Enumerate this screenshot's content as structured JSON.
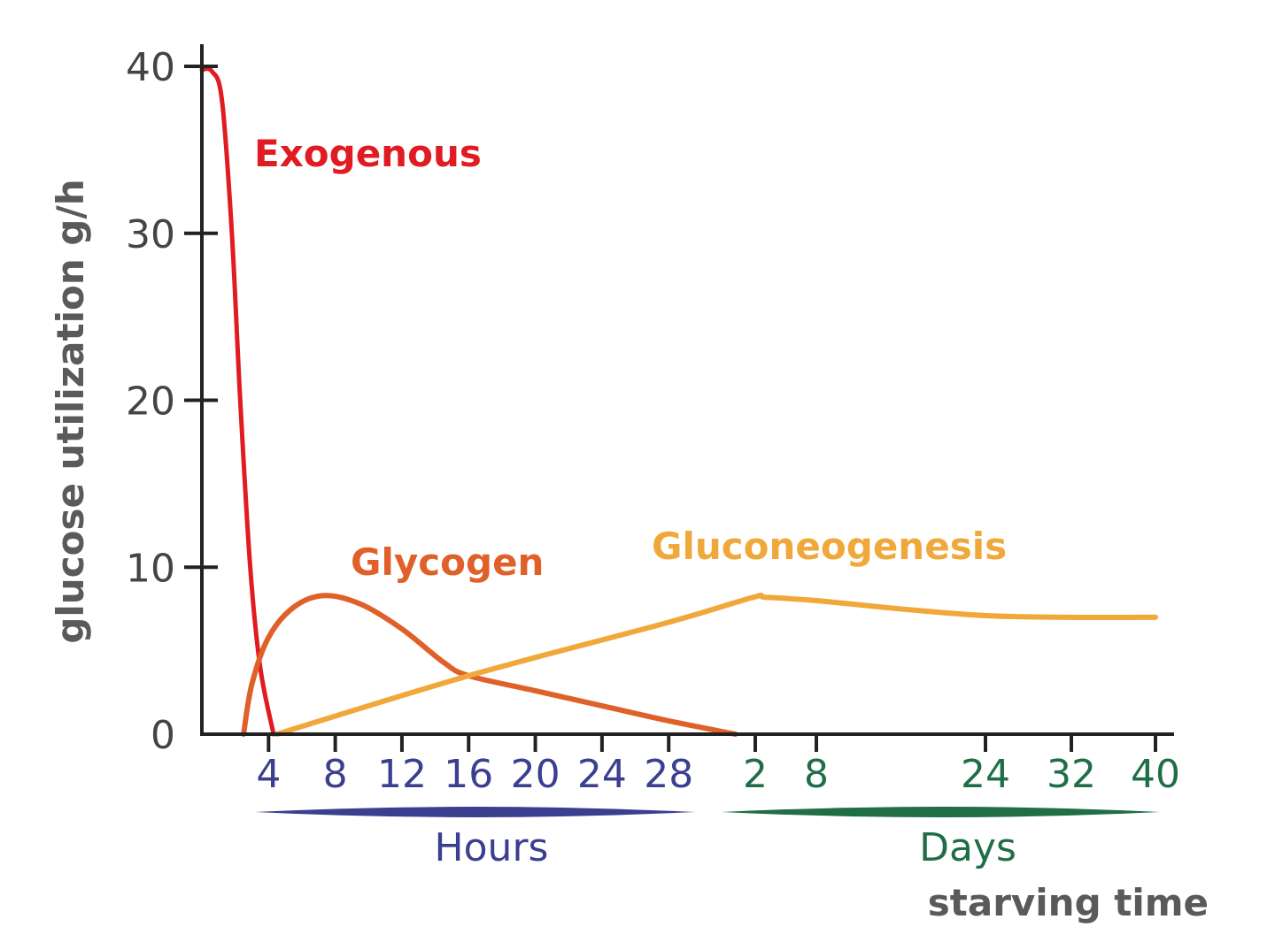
{
  "chart_data": {
    "type": "line",
    "ylabel": "glucose utilization g/h",
    "xlabel": "starving time",
    "ylim": [
      0,
      40
    ],
    "yticks": [
      0,
      10,
      20,
      30,
      40
    ],
    "x_segments": [
      {
        "name": "Hours",
        "unit": "h",
        "ticks": [
          4,
          8,
          12,
          16,
          20,
          24,
          28
        ],
        "color": "#3a3f8f"
      },
      {
        "name": "Days",
        "unit": "d",
        "ticks": [
          2,
          8,
          24,
          32,
          40
        ],
        "color": "#1f6e45"
      }
    ],
    "grid": false,
    "series": [
      {
        "name": "Exogenous",
        "color": "#e01b22",
        "points": [
          {
            "u": "h",
            "x": 0,
            "y": 39.8
          },
          {
            "u": "h",
            "x": 0.6,
            "y": 39.7
          },
          {
            "u": "h",
            "x": 1.2,
            "y": 38
          },
          {
            "u": "h",
            "x": 1.8,
            "y": 30
          },
          {
            "u": "h",
            "x": 2.3,
            "y": 20
          },
          {
            "u": "h",
            "x": 2.9,
            "y": 10
          },
          {
            "u": "h",
            "x": 3.5,
            "y": 4
          },
          {
            "u": "h",
            "x": 4.3,
            "y": 0
          }
        ]
      },
      {
        "name": "Glycogen",
        "color": "#e0602a",
        "points": [
          {
            "u": "h",
            "x": 2.5,
            "y": 0
          },
          {
            "u": "h",
            "x": 3,
            "y": 3
          },
          {
            "u": "h",
            "x": 4,
            "y": 5.8
          },
          {
            "u": "h",
            "x": 5.5,
            "y": 7.6
          },
          {
            "u": "h",
            "x": 7.3,
            "y": 8.3
          },
          {
            "u": "h",
            "x": 9.5,
            "y": 7.8
          },
          {
            "u": "h",
            "x": 12,
            "y": 6.3
          },
          {
            "u": "h",
            "x": 14.5,
            "y": 4.3
          },
          {
            "u": "h",
            "x": 16,
            "y": 3.5
          },
          {
            "u": "h",
            "x": 20,
            "y": 2.6
          },
          {
            "u": "h",
            "x": 24,
            "y": 1.7
          },
          {
            "u": "h",
            "x": 28,
            "y": 0.8
          },
          {
            "u": "h",
            "x": 32,
            "y": 0
          }
        ]
      },
      {
        "name": "Gluconeogenesis",
        "color": "#f0a83a",
        "points": [
          {
            "u": "h",
            "x": 4.5,
            "y": 0
          },
          {
            "u": "h",
            "x": 16,
            "y": 3.5
          },
          {
            "u": "h",
            "x": 28,
            "y": 6.7
          },
          {
            "u": "d",
            "x": 1.8,
            "y": 8.2
          },
          {
            "u": "d",
            "x": 3,
            "y": 8.2
          },
          {
            "u": "d",
            "x": 8,
            "y": 8.0
          },
          {
            "u": "d",
            "x": 16,
            "y": 7.5
          },
          {
            "u": "d",
            "x": 24,
            "y": 7.1
          },
          {
            "u": "d",
            "x": 32,
            "y": 7.0
          },
          {
            "u": "d",
            "x": 40,
            "y": 7.0
          }
        ]
      }
    ]
  }
}
